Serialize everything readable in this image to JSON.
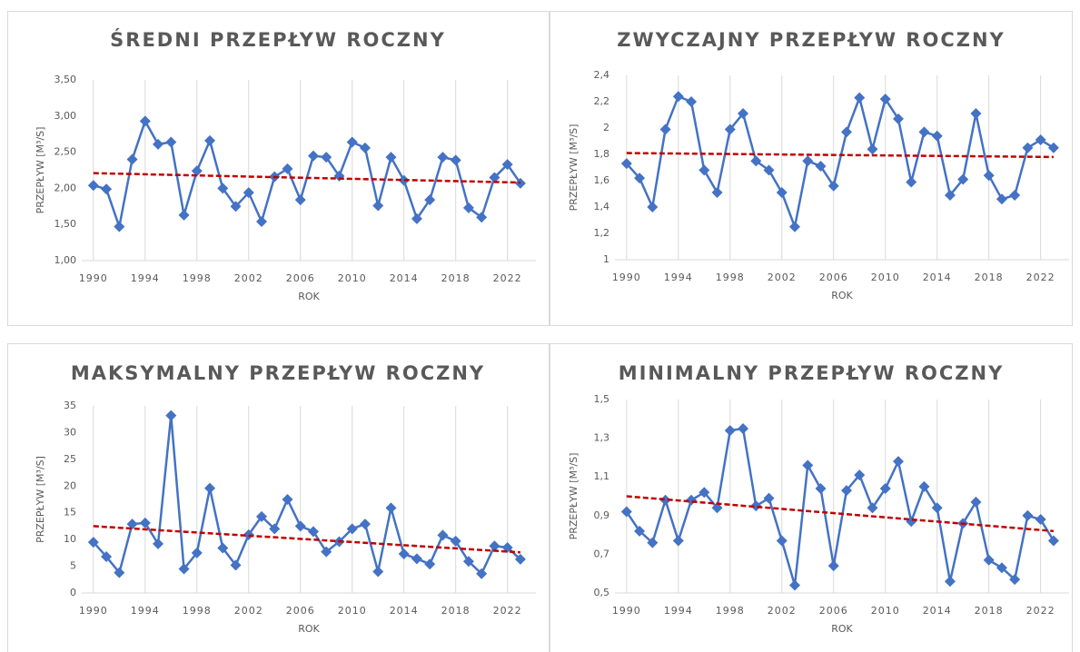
{
  "chart_data": [
    {
      "type": "line",
      "title": "ŚREDNI PRZEPŁYW ROCZNY",
      "xlabel": "ROK",
      "ylabel": "PRZEPŁYW [M³/S]",
      "color": "#4472c4",
      "trend_color": "#c00000",
      "x": [
        1990,
        1991,
        1992,
        1993,
        1994,
        1995,
        1996,
        1997,
        1998,
        1999,
        2000,
        2001,
        2002,
        2003,
        2004,
        2005,
        2006,
        2007,
        2008,
        2009,
        2010,
        2011,
        2012,
        2013,
        2014,
        2015,
        2016,
        2017,
        2018,
        2019,
        2020,
        2021,
        2022,
        2023
      ],
      "values": [
        2.04,
        1.99,
        1.47,
        2.4,
        2.93,
        2.61,
        2.64,
        1.63,
        2.24,
        2.66,
        2.0,
        1.75,
        1.94,
        1.54,
        2.16,
        2.27,
        1.84,
        2.45,
        2.43,
        2.17,
        2.64,
        2.56,
        1.76,
        2.43,
        2.11,
        1.58,
        1.84,
        2.43,
        2.39,
        1.73,
        1.6,
        2.15,
        2.33,
        2.07
      ],
      "trend": [
        2.21,
        2.08
      ],
      "xlim": [
        1989.1,
        2024.2
      ],
      "xticks": [
        1990,
        1994,
        1998,
        2002,
        2006,
        2010,
        2014,
        2018,
        2022
      ],
      "ylim": [
        1,
        3.5
      ],
      "yticks": [
        {
          "value": 1,
          "label": "1,00"
        },
        {
          "value": 1.5,
          "label": "1,50"
        },
        {
          "value": 2,
          "label": "2,00"
        },
        {
          "value": 2.5,
          "label": "2,50"
        },
        {
          "value": 3,
          "label": "3,00"
        },
        {
          "value": 3.5,
          "label": "3,50"
        }
      ],
      "grid": "x"
    },
    {
      "type": "line",
      "title": "ZWYCZAJNY PRZEPŁYW ROCZNY",
      "xlabel": "ROK",
      "ylabel": "PRZEPŁYW [M³/S]",
      "color": "#4472c4",
      "trend_color": "#c00000",
      "x": [
        1990,
        1991,
        1992,
        1993,
        1994,
        1995,
        1996,
        1997,
        1998,
        1999,
        2000,
        2001,
        2002,
        2003,
        2004,
        2005,
        2006,
        2007,
        2008,
        2009,
        2010,
        2011,
        2012,
        2013,
        2014,
        2015,
        2016,
        2017,
        2018,
        2019,
        2020,
        2021,
        2022,
        2023
      ],
      "values": [
        1.73,
        1.62,
        1.4,
        1.99,
        2.24,
        2.2,
        1.68,
        1.51,
        1.99,
        2.11,
        1.75,
        1.68,
        1.51,
        1.25,
        1.75,
        1.71,
        1.56,
        1.97,
        2.23,
        1.84,
        2.22,
        2.07,
        1.59,
        1.97,
        1.94,
        1.49,
        1.61,
        2.11,
        1.64,
        1.46,
        1.49,
        1.85,
        1.91,
        1.85
      ],
      "trend": [
        1.81,
        1.78
      ],
      "xlim": [
        1989.1,
        2024.2
      ],
      "xticks": [
        1990,
        1994,
        1998,
        2002,
        2006,
        2010,
        2014,
        2018,
        2022
      ],
      "ylim": [
        1,
        2.4
      ],
      "yticks": [
        1,
        {
          "value": 1.2,
          "label": "1,2"
        },
        {
          "value": 1.4,
          "label": "1,4"
        },
        {
          "value": 1.6,
          "label": "1,6"
        },
        {
          "value": 1.8,
          "label": "1,8"
        },
        2,
        {
          "value": 2.2,
          "label": "2,2"
        },
        {
          "value": 2.4,
          "label": "2,4"
        }
      ],
      "grid": "x"
    },
    {
      "type": "line",
      "title": "MAKSYMALNY PRZEPŁYW ROCZNY",
      "xlabel": "ROK",
      "ylabel": "PRZEPŁYW [M³/S]",
      "color": "#4472c4",
      "trend_color": "#c00000",
      "x": [
        1990,
        1991,
        1992,
        1993,
        1994,
        1995,
        1996,
        1997,
        1998,
        1999,
        2000,
        2001,
        2002,
        2003,
        2004,
        2005,
        2006,
        2007,
        2008,
        2009,
        2010,
        2011,
        2012,
        2013,
        2014,
        2015,
        2016,
        2017,
        2018,
        2019,
        2020,
        2021,
        2022,
        2023
      ],
      "values": [
        9.5,
        6.8,
        3.8,
        12.9,
        13.1,
        9.2,
        33.2,
        4.5,
        7.5,
        19.6,
        8.4,
        5.2,
        10.9,
        14.3,
        12.0,
        17.5,
        12.5,
        11.5,
        7.7,
        9.6,
        12.0,
        12.9,
        4.0,
        15.9,
        7.3,
        6.4,
        5.4,
        10.8,
        9.7,
        5.9,
        3.6,
        8.8,
        8.5,
        6.3
      ],
      "trend": [
        12.5,
        7.6
      ],
      "xlim": [
        1989.1,
        2024.2
      ],
      "xticks": [
        1990,
        1994,
        1998,
        2002,
        2006,
        2010,
        2014,
        2018,
        2022
      ],
      "ylim": [
        0,
        35
      ],
      "yticks": [
        0,
        5,
        10,
        15,
        20,
        25,
        30,
        35
      ],
      "grid": "x"
    },
    {
      "type": "line",
      "title": "MINIMALNY PRZEPŁYW ROCZNY",
      "xlabel": "ROK",
      "ylabel": "PRZEPŁYW [M³/S]",
      "color": "#4472c4",
      "trend_color": "#c00000",
      "x": [
        1990,
        1991,
        1992,
        1993,
        1994,
        1995,
        1996,
        1997,
        1998,
        1999,
        2000,
        2001,
        2002,
        2003,
        2004,
        2005,
        2006,
        2007,
        2008,
        2009,
        2010,
        2011,
        2012,
        2013,
        2014,
        2015,
        2016,
        2017,
        2018,
        2019,
        2020,
        2021,
        2022,
        2023
      ],
      "values": [
        0.92,
        0.82,
        0.76,
        0.98,
        0.77,
        0.98,
        1.02,
        0.94,
        1.34,
        1.35,
        0.95,
        0.99,
        0.77,
        0.54,
        1.16,
        1.04,
        0.64,
        1.03,
        1.11,
        0.94,
        1.04,
        1.18,
        0.87,
        1.05,
        0.94,
        0.56,
        0.86,
        0.97,
        0.67,
        0.63,
        0.57,
        0.9,
        0.88,
        0.77
      ],
      "trend": [
        1.0,
        0.82
      ],
      "xlim": [
        1989.1,
        2024.2
      ],
      "xticks": [
        1990,
        1994,
        1998,
        2002,
        2006,
        2010,
        2014,
        2018,
        2022
      ],
      "ylim": [
        0.5,
        1.5
      ],
      "yticks": [
        {
          "value": 0.5,
          "label": "0,5"
        },
        {
          "value": 0.7,
          "label": "0,7"
        },
        {
          "value": 0.9,
          "label": "0,9"
        },
        {
          "value": 1.1,
          "label": "1,1"
        },
        {
          "value": 1.3,
          "label": "1,3"
        },
        {
          "value": 1.5,
          "label": "1,5"
        }
      ],
      "grid": "x"
    }
  ]
}
